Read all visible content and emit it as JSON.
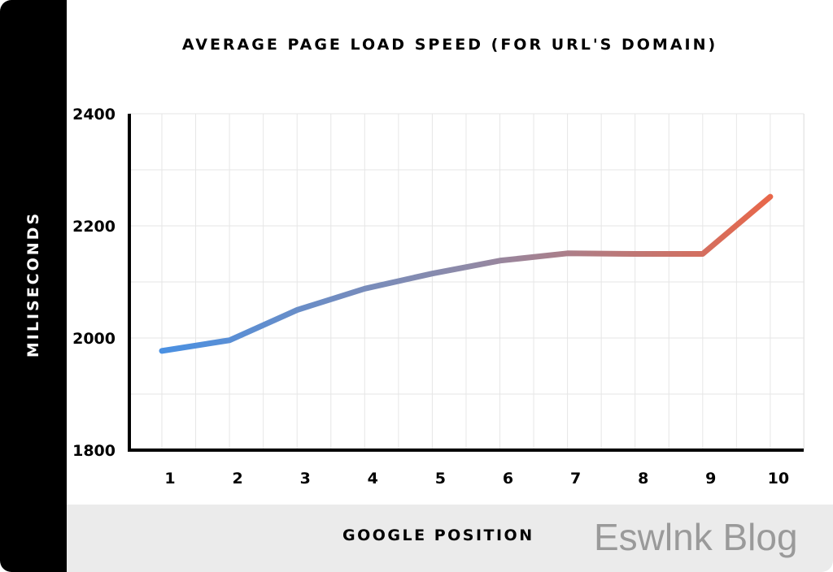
{
  "chart_data": {
    "type": "line",
    "title": "AVERAGE PAGE LOAD SPEED (FOR URL'S DOMAIN)",
    "xlabel": "GOOGLE POSITION",
    "ylabel": "MILISECONDS",
    "x": [
      1,
      2,
      3,
      4,
      5,
      6,
      7,
      8,
      9,
      10
    ],
    "x_tick_labels": [
      "1",
      "2",
      "3",
      "4",
      "5",
      "6",
      "7",
      "8",
      "9",
      "10"
    ],
    "y_tick_labels": [
      "2400",
      "2200",
      "2000",
      "1800"
    ],
    "values": [
      1977,
      1996,
      2050,
      2088,
      2115,
      2138,
      2151,
      2150,
      2150,
      2252
    ],
    "ylim": [
      1800,
      2400
    ],
    "grid": true,
    "line_gradient": [
      "#4a90e2",
      "#8e8aa8",
      "#e8674a"
    ]
  },
  "watermark": "Eswlnk Blog"
}
